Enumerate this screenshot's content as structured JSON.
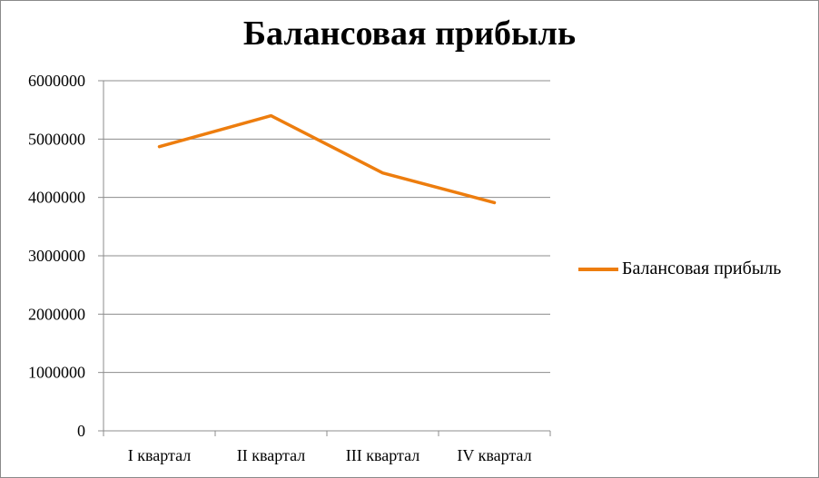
{
  "chart_data": {
    "type": "line",
    "title": "Балансовая прибыль",
    "categories": [
      "I квартал",
      "II квартал",
      "III квартал",
      "IV квартал"
    ],
    "series": [
      {
        "name": "Балансовая прибыль",
        "values": [
          4870000,
          5400000,
          4420000,
          3910000
        ],
        "color": "#ED7D0E"
      }
    ],
    "ylim": [
      0,
      6000000
    ],
    "yticks": [
      "0",
      "1000000",
      "2000000",
      "3000000",
      "4000000",
      "5000000",
      "6000000"
    ],
    "xlabel": "",
    "ylabel": "",
    "grid": true,
    "legend_position": "right"
  }
}
